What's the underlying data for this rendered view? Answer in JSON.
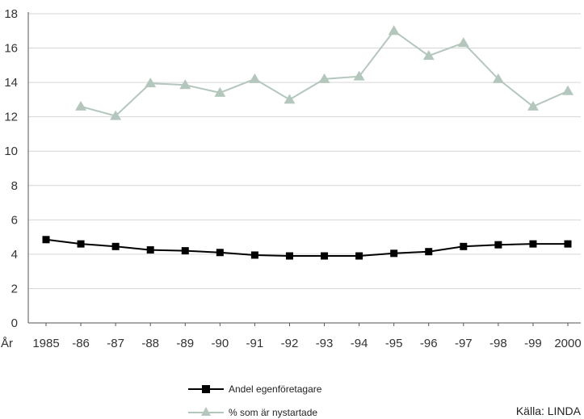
{
  "chart_data": {
    "type": "line",
    "x_prefix": "År",
    "categories": [
      "1985",
      "-86",
      "-87",
      "-88",
      "-89",
      "-90",
      "-91",
      "-92",
      "-93",
      "-94",
      "-95",
      "-96",
      "-97",
      "-98",
      "-99",
      "2000"
    ],
    "ylim": [
      0,
      18
    ],
    "yticks": [
      "0",
      "2",
      "4",
      "6",
      "8",
      "10",
      "12",
      "14",
      "16",
      "18"
    ],
    "grid": true,
    "legend_position": "bottom-center",
    "series": [
      {
        "name": "Andel egenföretagare",
        "color": "#000000",
        "marker": "square",
        "values": [
          4.85,
          4.6,
          4.45,
          4.25,
          4.2,
          4.1,
          3.95,
          3.9,
          3.9,
          3.9,
          4.05,
          4.15,
          4.45,
          4.55,
          4.6,
          4.6
        ]
      },
      {
        "name": "% som är nystartade",
        "color": "#b3c7bd",
        "marker": "triangle",
        "values": [
          null,
          12.6,
          12.05,
          13.95,
          13.85,
          13.4,
          14.2,
          13.0,
          14.2,
          14.35,
          17.0,
          15.55,
          16.3,
          14.2,
          12.6,
          13.5
        ]
      }
    ],
    "source": "Källa: LINDA"
  }
}
